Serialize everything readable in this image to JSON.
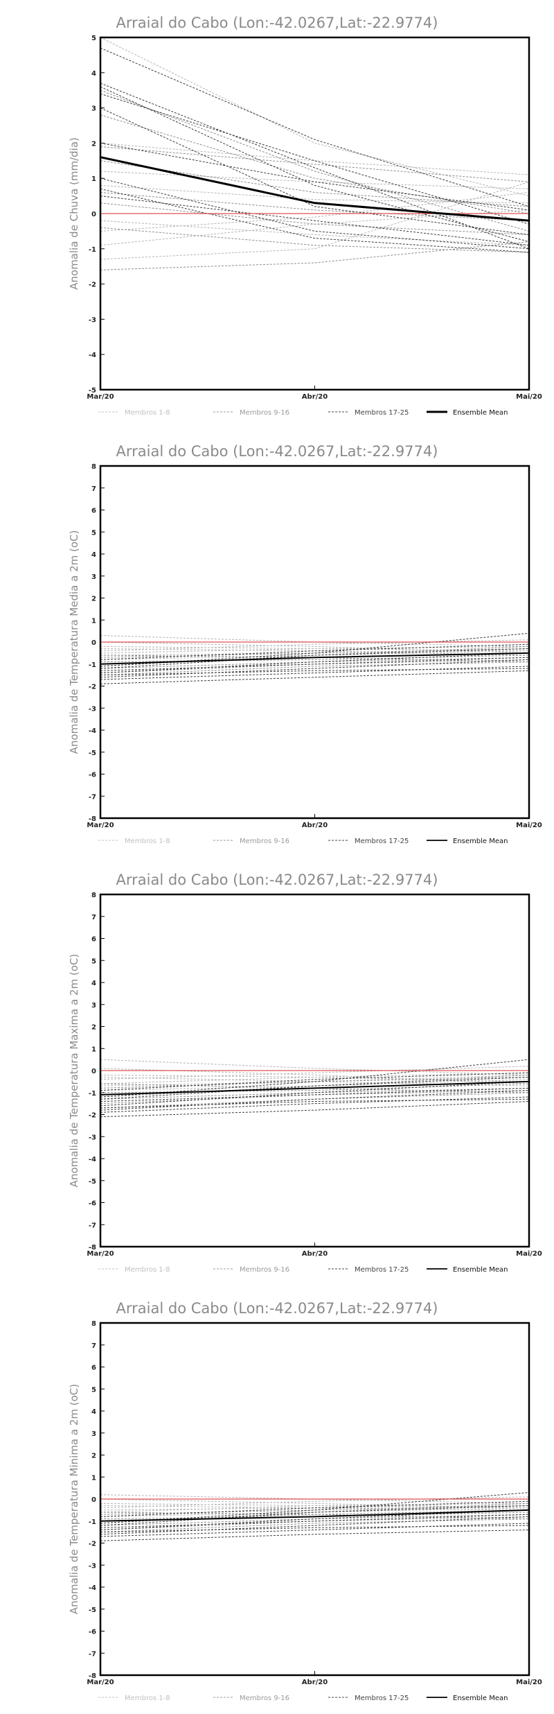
{
  "chart_data": [
    {
      "type": "line",
      "title": "Arraial do Cabo (Lon:-42.0267,Lat:-22.9774)",
      "ylabel": "Anomalia de Chuva (mm/dia)",
      "xlabel": "",
      "x": [
        "Mar/20",
        "Abr/20",
        "Mai/20"
      ],
      "ylim": [
        -5,
        5
      ],
      "yticks": [
        -5,
        -4,
        -3,
        -2,
        -1,
        0,
        1,
        2,
        3,
        4,
        5
      ],
      "grid": false,
      "legend_position": "bottom",
      "legend": [
        "Membros 1-8",
        "Membros 9-16",
        "Membros 17-25",
        "Ensemble Mean"
      ],
      "reference_line": {
        "y": 0,
        "color": "#e05050"
      },
      "series": [
        {
          "group": 0,
          "values": [
            -0.5,
            -0.1,
            0.6
          ]
        },
        {
          "group": 0,
          "values": [
            -1.3,
            -1.0,
            0.9
          ]
        },
        {
          "group": 0,
          "values": [
            5.0,
            2.0,
            0.5
          ]
        },
        {
          "group": 0,
          "values": [
            0.8,
            0.4,
            0.3
          ]
        },
        {
          "group": 0,
          "values": [
            -0.9,
            -0.3,
            0.1
          ]
        },
        {
          "group": 0,
          "values": [
            2.0,
            1.5,
            1.1
          ]
        },
        {
          "group": 0,
          "values": [
            -0.2,
            -0.6,
            -0.9
          ]
        },
        {
          "group": 0,
          "values": [
            1.2,
            0.9,
            0.7
          ]
        },
        {
          "group": 1,
          "values": [
            -1.6,
            -1.4,
            -0.8
          ]
        },
        {
          "group": 1,
          "values": [
            3.5,
            1.2,
            -0.5
          ]
        },
        {
          "group": 1,
          "values": [
            1.5,
            0.6,
            0.2
          ]
        },
        {
          "group": 1,
          "values": [
            0.6,
            0.1,
            -0.2
          ]
        },
        {
          "group": 1,
          "values": [
            -0.4,
            -0.9,
            -1.1
          ]
        },
        {
          "group": 1,
          "values": [
            2.8,
            1.0,
            0.0
          ]
        },
        {
          "group": 1,
          "values": [
            0.3,
            -0.3,
            -0.6
          ]
        },
        {
          "group": 1,
          "values": [
            1.9,
            1.4,
            0.9
          ]
        },
        {
          "group": 2,
          "values": [
            4.7,
            2.1,
            0.2
          ]
        },
        {
          "group": 2,
          "values": [
            3.7,
            1.3,
            -1.0
          ]
        },
        {
          "group": 2,
          "values": [
            3.6,
            0.8,
            -0.8
          ]
        },
        {
          "group": 2,
          "values": [
            3.4,
            1.5,
            -0.3
          ]
        },
        {
          "group": 2,
          "values": [
            2.0,
            0.9,
            0.1
          ]
        },
        {
          "group": 2,
          "values": [
            1.0,
            -0.5,
            -1.0
          ]
        },
        {
          "group": 2,
          "values": [
            0.7,
            -0.7,
            -1.1
          ]
        },
        {
          "group": 2,
          "values": [
            0.5,
            -0.2,
            -0.9
          ]
        },
        {
          "group": 2,
          "values": [
            3.0,
            0.2,
            -0.6
          ]
        }
      ],
      "mean": [
        1.6,
        0.3,
        -0.2
      ]
    },
    {
      "type": "line",
      "title": "Arraial do Cabo (Lon:-42.0267,Lat:-22.9774)",
      "ylabel": "Anomalia de Temperatura Media a 2m (oC)",
      "xlabel": "",
      "x": [
        "Mar/20",
        "Abr/20",
        "Mai/20"
      ],
      "ylim": [
        -8,
        8
      ],
      "yticks": [
        -8,
        -7,
        -6,
        -5,
        -4,
        -3,
        -2,
        -1,
        0,
        1,
        2,
        3,
        4,
        5,
        6,
        7,
        8
      ],
      "grid": false,
      "legend_position": "bottom",
      "legend": [
        "Membros 1-8",
        "Membros 9-16",
        "Membros 17-25",
        "Ensemble Mean"
      ],
      "reference_line": {
        "y": 0,
        "color": "#e05050"
      },
      "series": [
        {
          "group": 0,
          "values": [
            0.3,
            0.0,
            -0.2
          ]
        },
        {
          "group": 0,
          "values": [
            -0.2,
            -0.3,
            -0.4
          ]
        },
        {
          "group": 0,
          "values": [
            -0.6,
            -0.5,
            -0.3
          ]
        },
        {
          "group": 0,
          "values": [
            -0.4,
            -0.1,
            0.1
          ]
        },
        {
          "group": 0,
          "values": [
            0.0,
            -0.2,
            -0.5
          ]
        },
        {
          "group": 0,
          "values": [
            -0.8,
            -0.6,
            -0.4
          ]
        },
        {
          "group": 0,
          "values": [
            -0.3,
            -0.4,
            -0.6
          ]
        },
        {
          "group": 0,
          "values": [
            -0.5,
            -0.3,
            -0.2
          ]
        },
        {
          "group": 1,
          "values": [
            -1.0,
            -0.7,
            -0.5
          ]
        },
        {
          "group": 1,
          "values": [
            -1.2,
            -0.9,
            -0.7
          ]
        },
        {
          "group": 1,
          "values": [
            -0.9,
            -0.8,
            -0.6
          ]
        },
        {
          "group": 1,
          "values": [
            -1.4,
            -1.0,
            -0.8
          ]
        },
        {
          "group": 1,
          "values": [
            -0.7,
            -0.5,
            -0.3
          ]
        },
        {
          "group": 1,
          "values": [
            -1.1,
            -0.6,
            -0.2
          ]
        },
        {
          "group": 1,
          "values": [
            -1.5,
            -1.1,
            -0.9
          ]
        },
        {
          "group": 1,
          "values": [
            -0.6,
            -0.7,
            -0.9
          ]
        },
        {
          "group": 2,
          "values": [
            -1.9,
            -1.6,
            -1.3
          ]
        },
        {
          "group": 2,
          "values": [
            -1.7,
            -1.4,
            -1.1
          ]
        },
        {
          "group": 2,
          "values": [
            -1.6,
            -1.2,
            -0.8
          ]
        },
        {
          "group": 2,
          "values": [
            -1.4,
            -0.9,
            -0.5
          ]
        },
        {
          "group": 2,
          "values": [
            -1.2,
            -0.6,
            -0.3
          ]
        },
        {
          "group": 2,
          "values": [
            -1.1,
            -0.5,
            0.4
          ]
        },
        {
          "group": 2,
          "values": [
            -0.8,
            -0.4,
            -0.1
          ]
        },
        {
          "group": 2,
          "values": [
            -1.3,
            -1.0,
            -0.7
          ]
        },
        {
          "group": 2,
          "values": [
            -1.5,
            -1.3,
            -1.2
          ]
        }
      ],
      "mean": [
        -1.0,
        -0.7,
        -0.5
      ]
    },
    {
      "type": "line",
      "title": "Arraial do Cabo (Lon:-42.0267,Lat:-22.9774)",
      "ylabel": "Anomalia de Temperatura Maxima a 2m (oC)",
      "xlabel": "",
      "x": [
        "Mar/20",
        "Abr/20",
        "Mai/20"
      ],
      "ylim": [
        -8,
        8
      ],
      "yticks": [
        -8,
        -7,
        -6,
        -5,
        -4,
        -3,
        -2,
        -1,
        0,
        1,
        2,
        3,
        4,
        5,
        6,
        7,
        8
      ],
      "grid": false,
      "legend_position": "bottom",
      "legend": [
        "Membros 1-8",
        "Membros 9-16",
        "Membros 17-25",
        "Ensemble Mean"
      ],
      "reference_line": {
        "y": 0,
        "color": "#e05050"
      },
      "series": [
        {
          "group": 0,
          "values": [
            0.5,
            0.1,
            -0.2
          ]
        },
        {
          "group": 0,
          "values": [
            -0.2,
            -0.3,
            -0.5
          ]
        },
        {
          "group": 0,
          "values": [
            -0.7,
            -0.5,
            -0.2
          ]
        },
        {
          "group": 0,
          "values": [
            -0.4,
            -0.1,
            0.2
          ]
        },
        {
          "group": 0,
          "values": [
            0.1,
            -0.2,
            -0.6
          ]
        },
        {
          "group": 0,
          "values": [
            -0.9,
            -0.7,
            -0.4
          ]
        },
        {
          "group": 0,
          "values": [
            -0.3,
            -0.5,
            -0.7
          ]
        },
        {
          "group": 0,
          "values": [
            -0.6,
            -0.3,
            -0.1
          ]
        },
        {
          "group": 1,
          "values": [
            -1.1,
            -0.8,
            -0.5
          ]
        },
        {
          "group": 1,
          "values": [
            -1.3,
            -1.0,
            -0.8
          ]
        },
        {
          "group": 1,
          "values": [
            -1.0,
            -0.9,
            -0.6
          ]
        },
        {
          "group": 1,
          "values": [
            -1.5,
            -1.1,
            -0.9
          ]
        },
        {
          "group": 1,
          "values": [
            -0.8,
            -0.5,
            -0.3
          ]
        },
        {
          "group": 1,
          "values": [
            -1.2,
            -0.7,
            -0.2
          ]
        },
        {
          "group": 1,
          "values": [
            -1.7,
            -1.3,
            -1.0
          ]
        },
        {
          "group": 1,
          "values": [
            -0.6,
            -0.8,
            -1.0
          ]
        },
        {
          "group": 2,
          "values": [
            -2.1,
            -1.8,
            -1.4
          ]
        },
        {
          "group": 2,
          "values": [
            -1.9,
            -1.5,
            -1.2
          ]
        },
        {
          "group": 2,
          "values": [
            -1.8,
            -1.3,
            -0.9
          ]
        },
        {
          "group": 2,
          "values": [
            -1.6,
            -1.0,
            -0.5
          ]
        },
        {
          "group": 2,
          "values": [
            -1.3,
            -0.7,
            -0.3
          ]
        },
        {
          "group": 2,
          "values": [
            -1.2,
            -0.5,
            0.5
          ]
        },
        {
          "group": 2,
          "values": [
            -0.9,
            -0.4,
            -0.1
          ]
        },
        {
          "group": 2,
          "values": [
            -1.4,
            -1.1,
            -0.8
          ]
        },
        {
          "group": 2,
          "values": [
            -1.7,
            -1.4,
            -1.3
          ]
        }
      ],
      "mean": [
        -1.1,
        -0.8,
        -0.5
      ]
    },
    {
      "type": "line",
      "title": "Arraial do Cabo (Lon:-42.0267,Lat:-22.9774)",
      "ylabel": "Anomalia de Temperatura Minima a 2m (oC)",
      "xlabel": "",
      "x": [
        "Mar/20",
        "Abr/20",
        "Mai/20"
      ],
      "ylim": [
        -8,
        8
      ],
      "yticks": [
        -8,
        -7,
        -6,
        -5,
        -4,
        -3,
        -2,
        -1,
        0,
        1,
        2,
        3,
        4,
        5,
        6,
        7,
        8
      ],
      "grid": false,
      "legend_position": "bottom",
      "legend": [
        "Membros 1-8",
        "Membros 9-16",
        "Membros 17-25",
        "Ensemble Mean"
      ],
      "reference_line": {
        "y": 0,
        "color": "#e05050"
      },
      "series": [
        {
          "group": 0,
          "values": [
            0.2,
            0.0,
            -0.2
          ]
        },
        {
          "group": 0,
          "values": [
            -0.2,
            -0.3,
            -0.4
          ]
        },
        {
          "group": 0,
          "values": [
            -0.5,
            -0.4,
            -0.3
          ]
        },
        {
          "group": 0,
          "values": [
            -0.4,
            -0.1,
            0.1
          ]
        },
        {
          "group": 0,
          "values": [
            0.0,
            -0.2,
            -0.4
          ]
        },
        {
          "group": 0,
          "values": [
            -0.8,
            -0.6,
            -0.4
          ]
        },
        {
          "group": 0,
          "values": [
            -0.3,
            -0.4,
            -0.5
          ]
        },
        {
          "group": 0,
          "values": [
            -0.6,
            -0.3,
            -0.2
          ]
        },
        {
          "group": 1,
          "values": [
            -1.0,
            -0.7,
            -0.5
          ]
        },
        {
          "group": 1,
          "values": [
            -1.2,
            -0.9,
            -0.7
          ]
        },
        {
          "group": 1,
          "values": [
            -0.9,
            -0.8,
            -0.6
          ]
        },
        {
          "group": 1,
          "values": [
            -1.4,
            -1.0,
            -0.8
          ]
        },
        {
          "group": 1,
          "values": [
            -0.7,
            -0.5,
            -0.3
          ]
        },
        {
          "group": 1,
          "values": [
            -1.1,
            -0.6,
            -0.2
          ]
        },
        {
          "group": 1,
          "values": [
            -1.5,
            -1.1,
            -0.9
          ]
        },
        {
          "group": 1,
          "values": [
            -0.6,
            -0.7,
            -0.9
          ]
        },
        {
          "group": 2,
          "values": [
            -1.9,
            -1.6,
            -1.4
          ]
        },
        {
          "group": 2,
          "values": [
            -1.7,
            -1.4,
            -1.1
          ]
        },
        {
          "group": 2,
          "values": [
            -1.6,
            -1.2,
            -0.8
          ]
        },
        {
          "group": 2,
          "values": [
            -1.4,
            -0.9,
            -0.5
          ]
        },
        {
          "group": 2,
          "values": [
            -1.2,
            -0.6,
            -0.3
          ]
        },
        {
          "group": 2,
          "values": [
            -1.1,
            -0.5,
            0.3
          ]
        },
        {
          "group": 2,
          "values": [
            -0.8,
            -0.4,
            -0.1
          ]
        },
        {
          "group": 2,
          "values": [
            -1.3,
            -1.0,
            -0.7
          ]
        },
        {
          "group": 2,
          "values": [
            -1.5,
            -1.3,
            -1.2
          ]
        }
      ],
      "mean": [
        -1.0,
        -0.8,
        -0.5
      ]
    }
  ]
}
